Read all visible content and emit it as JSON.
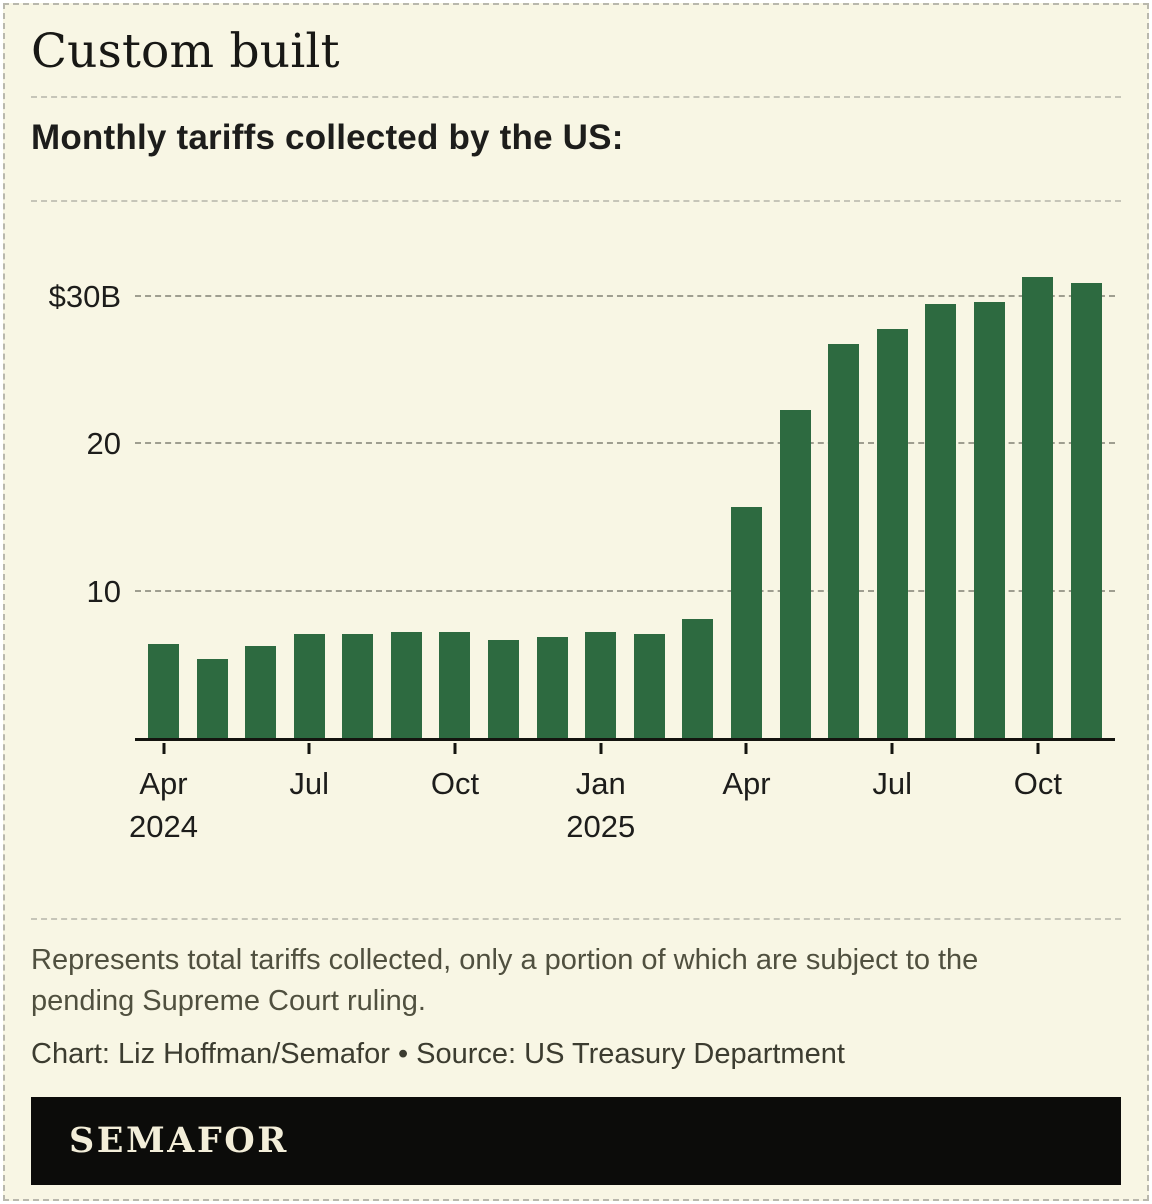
{
  "header": {
    "title": "Custom built",
    "subtitle": "Monthly tariffs collected by the US:"
  },
  "chart_data": {
    "type": "bar",
    "title": "Custom built",
    "subtitle": "Monthly tariffs collected by the US:",
    "unit": "billions of US dollars",
    "ylim": [
      0,
      33.8
    ],
    "grid": "dashed-horizontal",
    "legend": "none",
    "bar_color": "#2d6a40",
    "background_color": "#f8f6e4",
    "categories": [
      "Apr 2024",
      "May 2024",
      "Jun 2024",
      "Jul 2024",
      "Aug 2024",
      "Sep 2024",
      "Oct 2024",
      "Nov 2024",
      "Dec 2024",
      "Jan 2025",
      "Feb 2025",
      "Mar 2025",
      "Apr 2025",
      "May 2025",
      "Jun 2025",
      "Jul 2025",
      "Aug 2025",
      "Sep 2025",
      "Oct 2025",
      "Nov 2025"
    ],
    "values": [
      6.5,
      5.5,
      6.4,
      7.2,
      7.2,
      7.3,
      7.3,
      6.8,
      7.0,
      7.3,
      7.2,
      8.2,
      15.8,
      22.3,
      26.8,
      27.8,
      29.5,
      29.6,
      31.3,
      30.9
    ],
    "yticks": [
      {
        "value": 10,
        "label": "10"
      },
      {
        "value": 20,
        "label": "20"
      },
      {
        "value": 30,
        "label": "$30B"
      }
    ],
    "xticks": [
      {
        "index": 0,
        "label": "Apr",
        "year": "2024"
      },
      {
        "index": 3,
        "label": "Jul"
      },
      {
        "index": 6,
        "label": "Oct"
      },
      {
        "index": 9,
        "label": "Jan",
        "year": "2025"
      },
      {
        "index": 12,
        "label": "Apr"
      },
      {
        "index": 15,
        "label": "Jul"
      },
      {
        "index": 18,
        "label": "Oct"
      }
    ]
  },
  "footnote": {
    "text": "Represents total tariffs collected, only a portion of which are subject to the pending Supreme Court ruling.",
    "credit": "Chart: Liz Hoffman/Semafor • Source: US Treasury Department"
  },
  "footer": {
    "brand": "SEMAFOR"
  }
}
